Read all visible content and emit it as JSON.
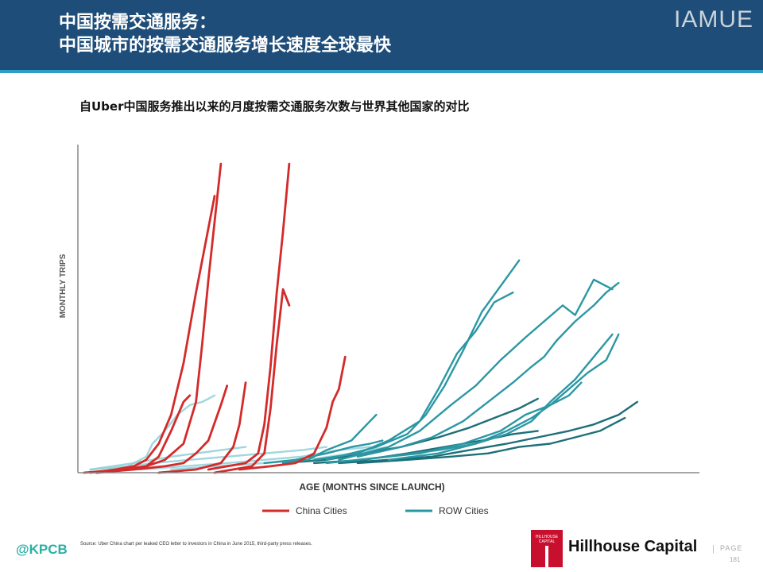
{
  "header": {
    "title_line1": "中国按需交通服务：",
    "title_line2": "中国城市的按需交通服务增长速度全球最快",
    "brand": "IAMUE"
  },
  "subtitle": "自Uber中国服务推出以来的月度按需交通服务次数与世界其他国家的对比",
  "footer": {
    "source": "Source: Uber China chart per leaked CEO letter to investors in China in June 2015, third-party press releases.",
    "kpcb": "@KPCB",
    "hillhouse_logo": "HILLHOUSE CAPITAL",
    "hillhouse_name": "Hillhouse Capital",
    "page_sep": "|",
    "page_label": "PAGE",
    "page_number": "181"
  },
  "colors": {
    "header_bg": "#1d4d78",
    "accent": "#2e9fc4",
    "china": "#d42a2a",
    "row_dark": "#1d6f78",
    "row_mid": "#2b97a3",
    "row_light": "#8fd0d8"
  },
  "chart_data": {
    "type": "line",
    "xlabel": "AGE (MONTHS SINCE LAUNCH)",
    "ylabel": "MONTHLY TRIPS",
    "xlim": [
      0,
      100
    ],
    "ylim": [
      0,
      100
    ],
    "legend": {
      "position": "bottom-center",
      "items": [
        {
          "name": "China Cities",
          "color": "#d42a2a"
        },
        {
          "name": "ROW Cities",
          "color": "#2b97a3"
        }
      ]
    },
    "series": [
      {
        "group": "china",
        "points": [
          [
            1,
            0
          ],
          [
            7,
            1
          ],
          [
            11,
            2
          ],
          [
            14,
            4
          ],
          [
            17,
            9
          ],
          [
            19,
            22
          ],
          [
            20,
            40
          ],
          [
            21,
            60
          ],
          [
            22,
            78
          ],
          [
            23,
            96
          ]
        ]
      },
      {
        "group": "china",
        "points": [
          [
            2,
            0
          ],
          [
            6,
            1
          ],
          [
            9,
            2
          ],
          [
            11,
            4
          ],
          [
            13,
            9
          ],
          [
            15,
            18
          ],
          [
            17,
            34
          ],
          [
            19,
            56
          ],
          [
            21,
            76
          ],
          [
            22,
            86
          ]
        ]
      },
      {
        "group": "china",
        "points": [
          [
            3,
            0
          ],
          [
            8,
            1
          ],
          [
            11,
            2
          ],
          [
            13,
            5
          ],
          [
            15,
            13
          ],
          [
            17,
            22
          ],
          [
            18,
            24
          ]
        ]
      },
      {
        "group": "china",
        "points": [
          [
            3,
            0
          ],
          [
            9,
            1
          ],
          [
            14,
            2
          ],
          [
            17,
            3
          ],
          [
            19,
            6
          ],
          [
            21,
            10
          ],
          [
            23,
            21
          ],
          [
            24,
            27
          ]
        ]
      },
      {
        "group": "china",
        "points": [
          [
            13,
            0
          ],
          [
            19,
            1
          ],
          [
            23,
            3
          ],
          [
            25,
            8
          ],
          [
            26,
            15
          ],
          [
            27,
            28
          ]
        ]
      },
      {
        "group": "china",
        "points": [
          [
            21,
            1
          ],
          [
            27,
            3
          ],
          [
            29,
            6
          ],
          [
            30,
            15
          ],
          [
            31,
            33
          ],
          [
            32,
            56
          ],
          [
            33,
            75
          ],
          [
            34,
            96
          ]
        ]
      },
      {
        "group": "china",
        "points": [
          [
            22,
            0
          ],
          [
            28,
            2
          ],
          [
            30,
            6
          ],
          [
            31,
            20
          ],
          [
            32,
            40
          ],
          [
            33,
            57
          ],
          [
            34,
            52
          ]
        ]
      },
      {
        "group": "china",
        "points": [
          [
            26,
            1
          ],
          [
            31,
            2
          ],
          [
            35,
            3
          ],
          [
            38,
            6
          ],
          [
            40,
            14
          ],
          [
            41,
            22
          ],
          [
            42,
            26
          ],
          [
            43,
            36
          ]
        ]
      },
      {
        "group": "light",
        "points": [
          [
            2,
            1
          ],
          [
            8,
            2
          ],
          [
            11,
            5
          ],
          [
            12,
            9
          ],
          [
            14,
            13
          ],
          [
            16,
            18
          ],
          [
            18,
            21
          ],
          [
            20,
            22
          ],
          [
            22,
            24
          ]
        ]
      },
      {
        "group": "light",
        "points": [
          [
            2,
            1
          ],
          [
            9,
            3
          ],
          [
            15,
            5
          ],
          [
            19,
            6
          ],
          [
            23,
            7
          ],
          [
            27,
            8
          ]
        ]
      },
      {
        "group": "light",
        "points": [
          [
            5,
            1
          ],
          [
            12,
            3
          ],
          [
            18,
            4
          ],
          [
            24,
            5
          ],
          [
            30,
            6
          ],
          [
            36,
            7
          ],
          [
            40,
            8
          ]
        ]
      },
      {
        "group": "light",
        "points": [
          [
            10,
            1
          ],
          [
            17,
            2
          ],
          [
            24,
            3
          ],
          [
            30,
            4
          ],
          [
            36,
            5
          ],
          [
            42,
            7
          ],
          [
            47,
            8
          ]
        ]
      },
      {
        "group": "light",
        "points": [
          [
            15,
            1
          ],
          [
            22,
            2
          ],
          [
            30,
            3
          ],
          [
            37,
            4
          ],
          [
            44,
            6
          ],
          [
            50,
            8
          ]
        ]
      },
      {
        "group": "mid",
        "points": [
          [
            33,
            3
          ],
          [
            37,
            4
          ],
          [
            40,
            7
          ],
          [
            44,
            10
          ],
          [
            47,
            16
          ],
          [
            48,
            18
          ]
        ]
      },
      {
        "group": "mid",
        "points": [
          [
            30,
            3
          ],
          [
            35,
            4
          ],
          [
            40,
            6
          ],
          [
            44,
            8
          ],
          [
            47,
            9
          ],
          [
            49,
            10
          ]
        ]
      },
      {
        "group": "mid",
        "points": [
          [
            38,
            4
          ],
          [
            45,
            6
          ],
          [
            50,
            10
          ],
          [
            55,
            16
          ],
          [
            58,
            26
          ],
          [
            61,
            37
          ],
          [
            64,
            44
          ],
          [
            67,
            53
          ],
          [
            70,
            56
          ]
        ]
      },
      {
        "group": "mid",
        "points": [
          [
            40,
            4
          ],
          [
            48,
            8
          ],
          [
            53,
            12
          ],
          [
            56,
            18
          ],
          [
            59,
            27
          ],
          [
            62,
            38
          ],
          [
            65,
            50
          ],
          [
            68,
            58
          ],
          [
            71,
            66
          ]
        ]
      },
      {
        "group": "mid",
        "points": [
          [
            42,
            4
          ],
          [
            50,
            8
          ],
          [
            55,
            13
          ],
          [
            60,
            21
          ],
          [
            64,
            27
          ],
          [
            68,
            35
          ],
          [
            72,
            42
          ],
          [
            75,
            47
          ],
          [
            78,
            52
          ],
          [
            80,
            49
          ],
          [
            83,
            60
          ],
          [
            86,
            57
          ]
        ]
      },
      {
        "group": "mid",
        "points": [
          [
            45,
            5
          ],
          [
            52,
            8
          ],
          [
            57,
            11
          ],
          [
            62,
            16
          ],
          [
            66,
            22
          ],
          [
            70,
            28
          ],
          [
            73,
            33
          ],
          [
            75,
            36
          ],
          [
            77,
            41
          ],
          [
            80,
            47
          ],
          [
            83,
            52
          ],
          [
            85,
            56
          ],
          [
            87,
            59
          ]
        ]
      },
      {
        "group": "mid",
        "points": [
          [
            40,
            3
          ],
          [
            50,
            5
          ],
          [
            58,
            7
          ],
          [
            64,
            9
          ],
          [
            69,
            12
          ],
          [
            73,
            16
          ],
          [
            76,
            22
          ],
          [
            80,
            29
          ],
          [
            83,
            36
          ],
          [
            86,
            43
          ]
        ]
      },
      {
        "group": "mid",
        "points": [
          [
            45,
            4
          ],
          [
            55,
            6
          ],
          [
            62,
            9
          ],
          [
            68,
            13
          ],
          [
            72,
            18
          ],
          [
            76,
            21
          ],
          [
            79,
            26
          ],
          [
            82,
            31
          ],
          [
            85,
            35
          ],
          [
            87,
            43
          ]
        ]
      },
      {
        "group": "mid",
        "points": [
          [
            50,
            4
          ],
          [
            58,
            6
          ],
          [
            64,
            9
          ],
          [
            69,
            13
          ],
          [
            73,
            17
          ],
          [
            76,
            21
          ],
          [
            79,
            24
          ],
          [
            81,
            28
          ]
        ]
      },
      {
        "group": "dark",
        "points": [
          [
            33,
            3
          ],
          [
            40,
            4
          ],
          [
            46,
            6
          ],
          [
            52,
            8
          ],
          [
            58,
            11
          ],
          [
            63,
            14
          ],
          [
            67,
            17
          ],
          [
            71,
            20
          ],
          [
            74,
            23
          ]
        ]
      },
      {
        "group": "dark",
        "points": [
          [
            38,
            3
          ],
          [
            46,
            4
          ],
          [
            53,
            6
          ],
          [
            59,
            8
          ],
          [
            65,
            10
          ],
          [
            70,
            12
          ],
          [
            74,
            13
          ]
        ]
      },
      {
        "group": "dark",
        "points": [
          [
            42,
            3
          ],
          [
            50,
            4
          ],
          [
            57,
            5
          ],
          [
            63,
            7
          ],
          [
            69,
            9
          ],
          [
            74,
            11
          ],
          [
            79,
            13
          ],
          [
            83,
            15
          ],
          [
            87,
            18
          ],
          [
            90,
            22
          ]
        ]
      },
      {
        "group": "dark",
        "points": [
          [
            45,
            3
          ],
          [
            53,
            4
          ],
          [
            60,
            5
          ],
          [
            66,
            6
          ],
          [
            71,
            8
          ],
          [
            76,
            9
          ],
          [
            80,
            11
          ],
          [
            84,
            13
          ],
          [
            87,
            16
          ],
          [
            88,
            17
          ]
        ]
      }
    ]
  }
}
